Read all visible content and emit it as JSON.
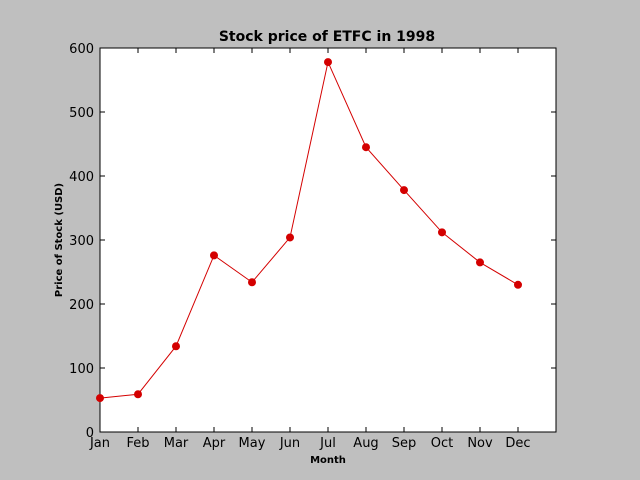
{
  "chart_data": {
    "type": "line",
    "title": "Stock price of ETFC in 1998",
    "xlabel": "Month",
    "ylabel": "Price of Stock (USD)",
    "categories": [
      "Jan",
      "Feb",
      "Mar",
      "Apr",
      "May",
      "Jun",
      "Jul",
      "Aug",
      "Sep",
      "Oct",
      "Nov",
      "Dec"
    ],
    "series": [
      {
        "values": [
          53,
          59,
          134,
          276,
          234,
          304,
          578,
          445,
          378,
          312,
          265,
          230
        ],
        "color": "#d40000"
      }
    ],
    "ylim": [
      0,
      600
    ],
    "yticks": [
      0,
      100,
      200,
      300,
      400,
      500,
      600
    ],
    "grid": false,
    "legend": "none"
  },
  "colors": {
    "figure_background": "#bfbfbf",
    "plot_background": "#ffffff",
    "line": "#d40000",
    "marker": "#d40000"
  }
}
